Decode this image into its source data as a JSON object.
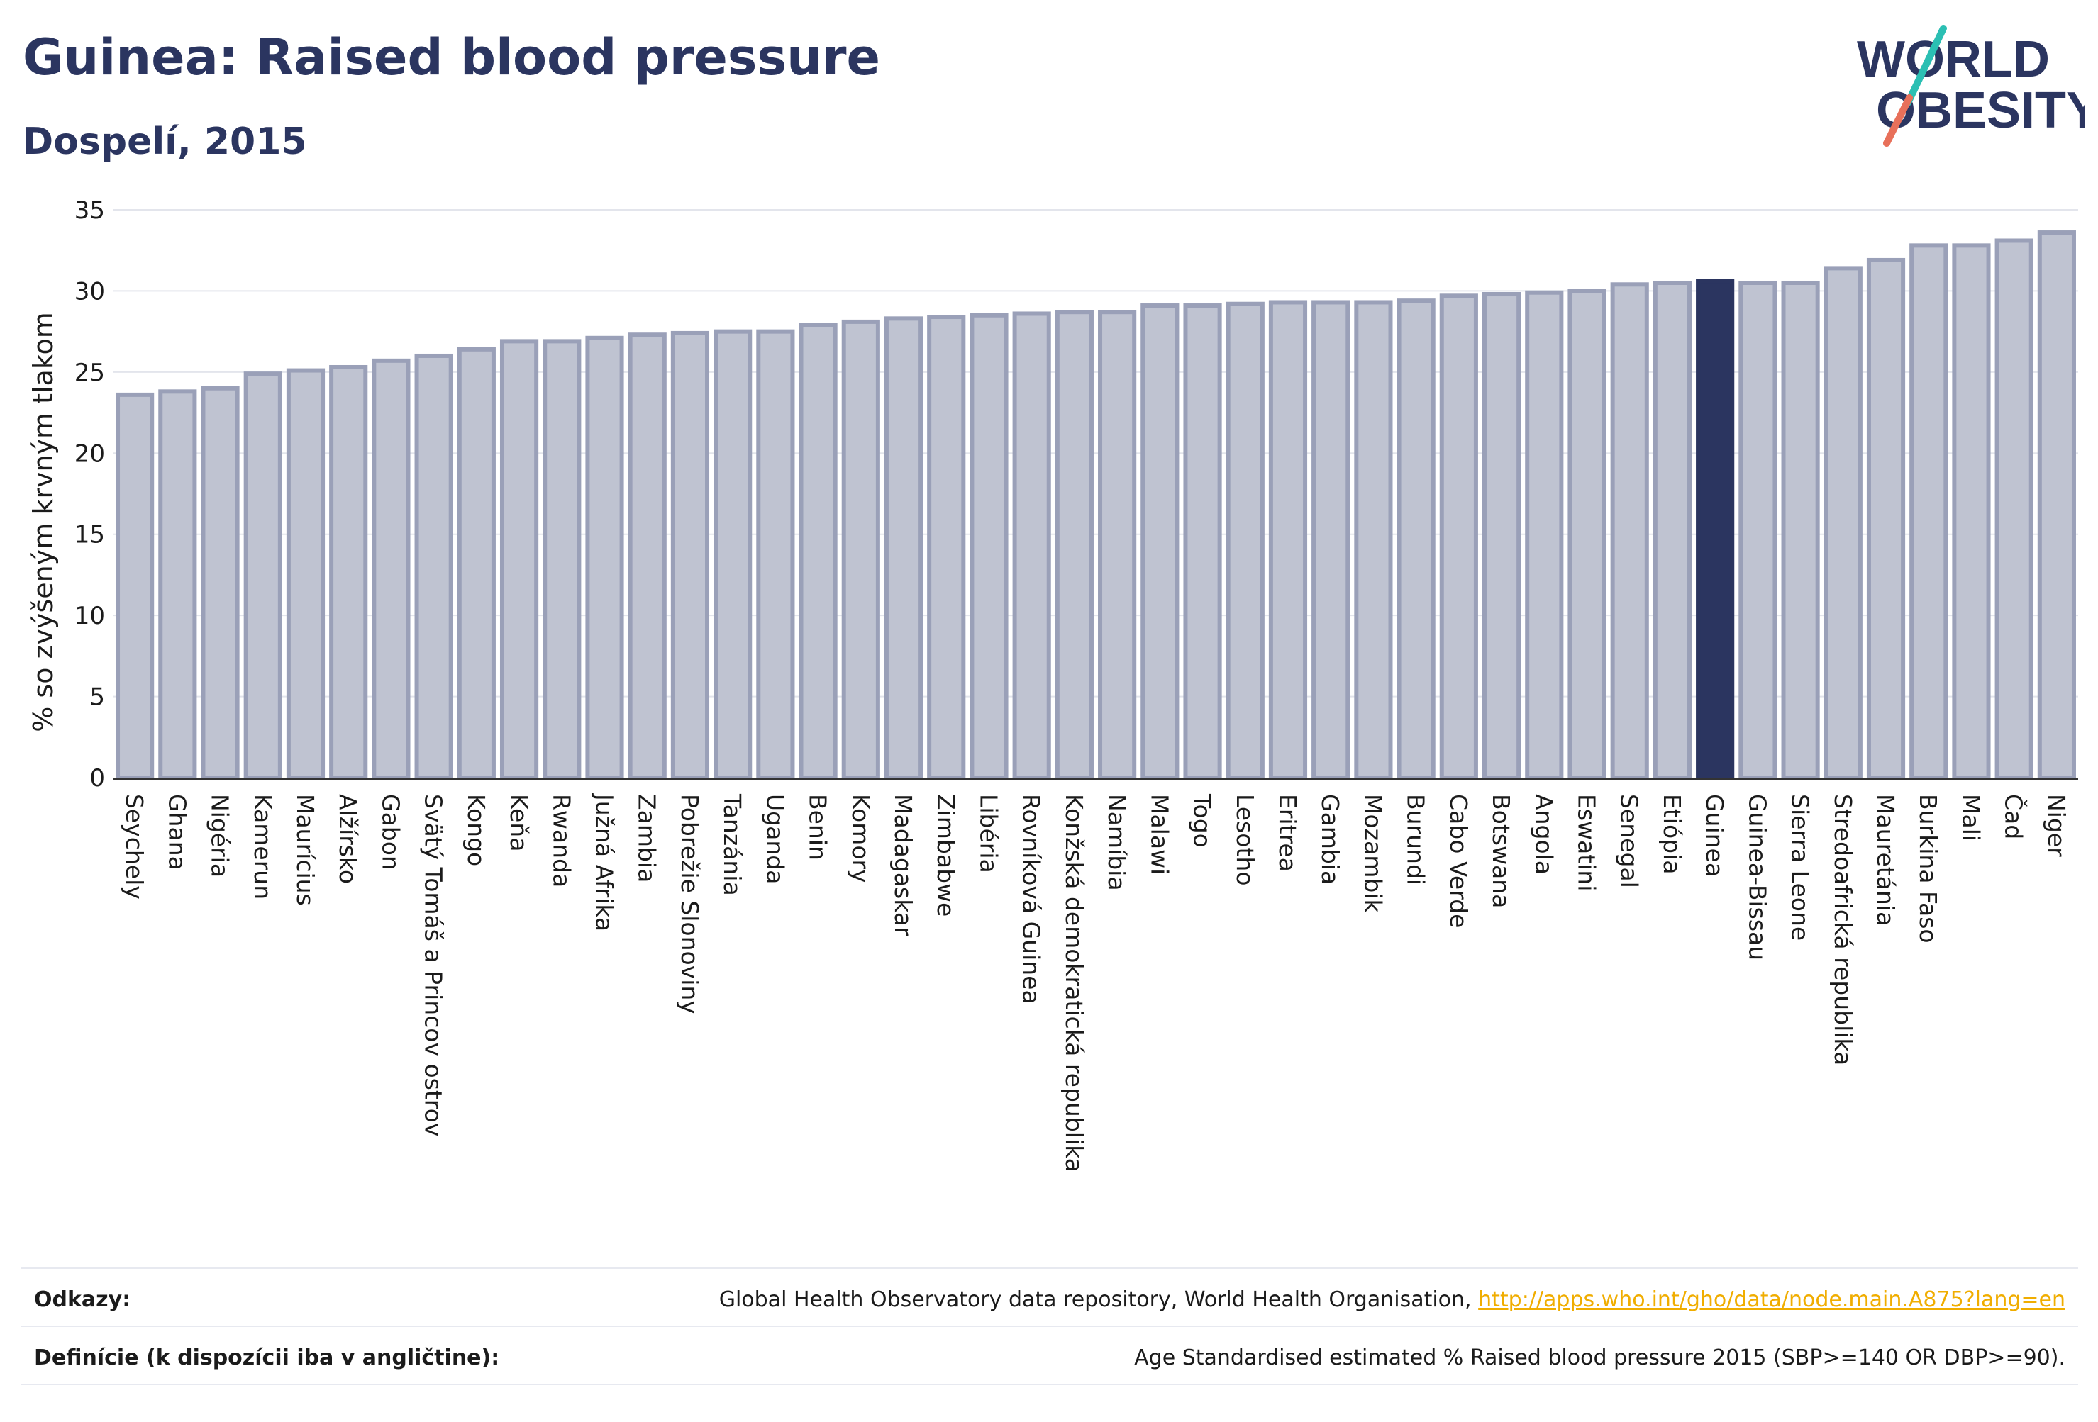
{
  "header": {
    "title": "Guinea: Raised blood pressure",
    "subtitle": "Dospelí, 2015"
  },
  "logo": {
    "line1": "WORLD",
    "line2": "OBESITY",
    "colors": {
      "text": "#2b3560",
      "slash_top": "#2bbfb3",
      "slash_bottom": "#e8705a"
    }
  },
  "colors": {
    "bar_fill": "#bfc3d1",
    "bar_stroke": "#9aa0b8",
    "highlight_fill": "#2b3560",
    "grid": "#e3e5ec",
    "axis": "#333333"
  },
  "chart_data": {
    "type": "bar",
    "ylabel": "% so zvýšeným krvným tlakom",
    "ylim": [
      0,
      35
    ],
    "yticks": [
      0,
      5,
      10,
      15,
      20,
      25,
      30,
      35
    ],
    "highlight": "Guinea",
    "categories": [
      "Seychely",
      "Ghana",
      "Nigéria",
      "Kamerun",
      "Maurícius",
      "Alžírsko",
      "Gabon",
      "Svätý Tomáš a Princov ostrov",
      "Kongo",
      "Keňa",
      "Rwanda",
      "Južná Afrika",
      "Zambia",
      "Pobrežie Slonoviny",
      "Tanzánia",
      "Uganda",
      "Benin",
      "Komory",
      "Madagaskar",
      "Zimbabwe",
      "Libéria",
      "Rovníková Guinea",
      "Konžská demokratická republika",
      "Namíbia",
      "Malawi",
      "Togo",
      "Lesotho",
      "Eritrea",
      "Gambia",
      "Mozambik",
      "Burundi",
      "Cabo Verde",
      "Botswana",
      "Angola",
      "Eswatini",
      "Senegal",
      "Etiópia",
      "Guinea",
      "Guinea-Bissau",
      "Sierra Leone",
      "Stredoafrická republika",
      "Mauretánia",
      "Burkina Faso",
      "Mali",
      "Čad",
      "Niger"
    ],
    "values": [
      23.6,
      23.8,
      24.0,
      24.9,
      25.1,
      25.3,
      25.7,
      26.0,
      26.4,
      26.9,
      26.9,
      27.1,
      27.3,
      27.4,
      27.5,
      27.5,
      27.9,
      28.1,
      28.3,
      28.4,
      28.5,
      28.6,
      28.7,
      28.7,
      29.1,
      29.1,
      29.2,
      29.3,
      29.3,
      29.3,
      29.4,
      29.7,
      29.8,
      29.9,
      30.0,
      30.4,
      30.5,
      30.6,
      30.5,
      30.5,
      31.4,
      31.9,
      32.8,
      32.8,
      33.1,
      33.6
    ]
  },
  "footer": {
    "sources_label": "Odkazy:",
    "sources_text": "Global Health Observatory data repository, World Health Organisation,",
    "sources_link": "http://apps.who.int/gho/data/node.main.A875?lang=en",
    "definitions_label": "Definície (k dispozícii iba v angličtine):",
    "definitions_text": "Age Standardised estimated % Raised blood pressure 2015 (SBP>=140 OR DBP>=90)."
  }
}
